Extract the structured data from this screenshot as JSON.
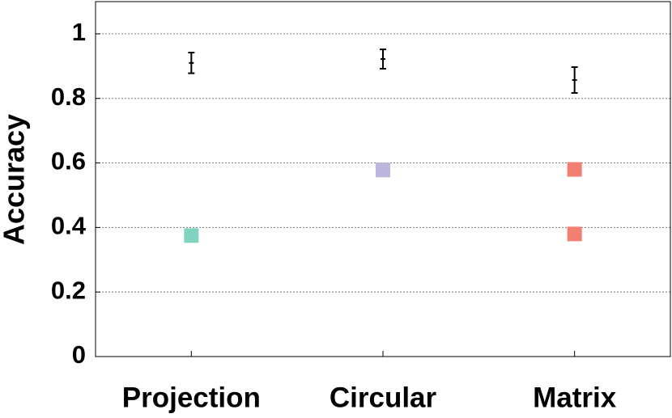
{
  "chart_data": {
    "type": "dot",
    "y_label": "Accuracy",
    "categories": [
      "Projection",
      "Circular",
      "Matrix"
    ],
    "ylim": [
      0,
      1.1
    ],
    "yticks": [
      0,
      0.2,
      0.4,
      0.6,
      0.8,
      1
    ],
    "grid": true,
    "error_bars": {
      "color": "#000000",
      "values": [
        0.91,
        0.922,
        0.857
      ],
      "errors": [
        0.032,
        0.03,
        0.04
      ]
    },
    "series": [
      {
        "color": "#7fd3bf",
        "values": [
          0.375,
          null,
          null
        ]
      },
      {
        "color": "#bcb6dc",
        "values": [
          null,
          0.578,
          null
        ]
      },
      {
        "color": "#f47e72",
        "values": [
          null,
          null,
          0.58
        ]
      },
      {
        "color": "#f47e72",
        "values": [
          null,
          null,
          0.38
        ]
      }
    ]
  }
}
